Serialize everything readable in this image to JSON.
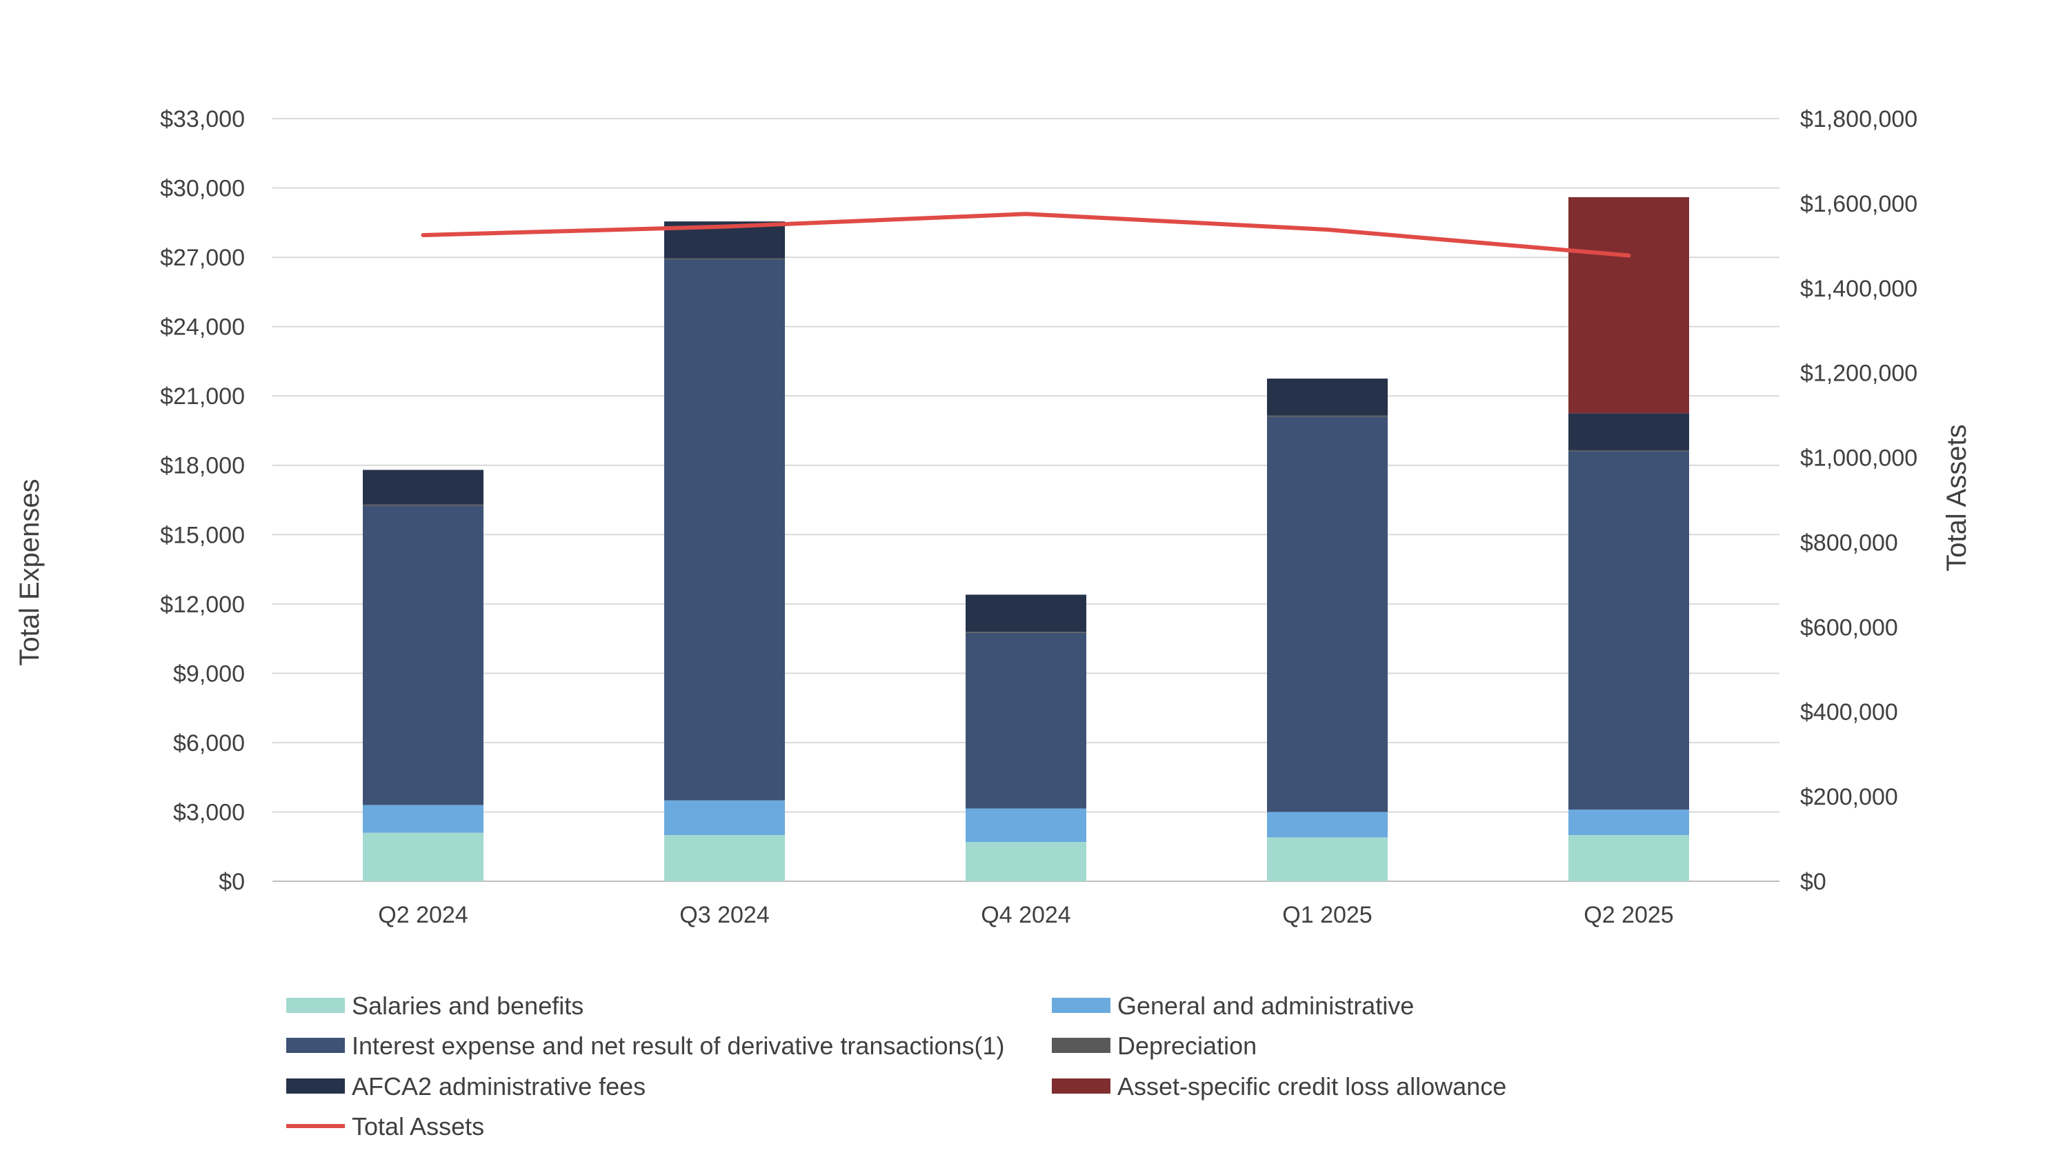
{
  "chart_data": {
    "type": "bar",
    "stacked": true,
    "categories": [
      "Q2 2024",
      "Q3 2024",
      "Q4 2024",
      "Q1 2025",
      "Q2 2025"
    ],
    "series": [
      {
        "name": "Salaries and benefits",
        "color": "#a3dad0",
        "values": [
          2100,
          2000,
          1700,
          1900,
          2000
        ]
      },
      {
        "name": "General and administrative",
        "color": "#6aaadf",
        "values": [
          1200,
          1500,
          1450,
          1100,
          1100
        ]
      },
      {
        "name": "Interest expense and net result of derivative transactions(1)",
        "color": "#3e5275",
        "values": [
          12950,
          23400,
          7600,
          17100,
          15500
        ]
      },
      {
        "name": "Depreciation",
        "color": "#595959",
        "values": [
          50,
          50,
          50,
          50,
          50
        ]
      },
      {
        "name": "AFCA2 administrative fees",
        "color": "#26324a",
        "values": [
          1500,
          1600,
          1600,
          1600,
          1600
        ]
      },
      {
        "name": "Asset-specific credit loss allowance",
        "color": "#7f2d2f",
        "values": [
          0,
          0,
          0,
          0,
          9350
        ]
      }
    ],
    "line_series": {
      "name": "Total Assets",
      "color": "#e04b47",
      "axis": "right",
      "values": [
        1525000,
        1545000,
        1575000,
        1538000,
        1477000
      ]
    },
    "ylabel": "Total Expenses",
    "ylabel_right": "Total Assets",
    "ylim": [
      0,
      33000
    ],
    "ylim_right": [
      0,
      1800000
    ],
    "yticks": [
      0,
      3000,
      6000,
      9000,
      12000,
      15000,
      18000,
      21000,
      24000,
      27000,
      30000,
      33000
    ],
    "yticks_right": [
      0,
      200000,
      400000,
      600000,
      800000,
      1000000,
      1200000,
      1400000,
      1600000,
      1800000
    ],
    "ytick_labels": [
      "$0",
      "$3,000",
      "$6,000",
      "$9,000",
      "$12,000",
      "$15,000",
      "$18,000",
      "$21,000",
      "$24,000",
      "$27,000",
      "$30,000",
      "$33,000"
    ],
    "ytick_labels_right": [
      "$0",
      "$200,000",
      "$400,000",
      "$600,000",
      "$800,000",
      "$1,000,000",
      "$1,200,000",
      "$1,400,000",
      "$1,600,000",
      "$1,800,000"
    ],
    "grid": true,
    "legend_position": "bottom"
  }
}
